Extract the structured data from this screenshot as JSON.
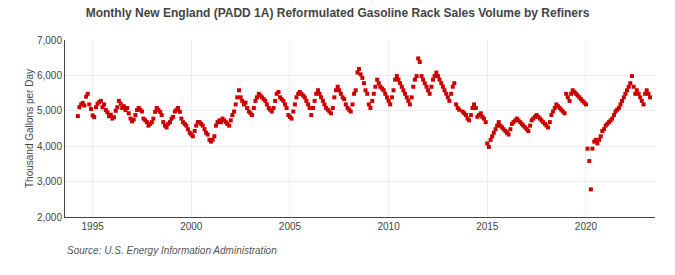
{
  "chart_data": {
    "type": "scatter",
    "title": "Monthly New England (PADD 1A) Reformulated Gasoline Rack Sales Volume by Refiners",
    "y_label": "Thousand Gallons per Day",
    "annotations": [
      "Source: U.S. Energy Information Administration"
    ],
    "color": "#cc0000",
    "marker": "square",
    "grid": true,
    "xlim": [
      1993.6,
      2023.5
    ],
    "xticks": [
      1995,
      2000,
      2005,
      2010,
      2015,
      2020
    ],
    "ylim": [
      2000,
      7000
    ],
    "yticks": [
      {
        "value": 2000,
        "label": "2,000"
      },
      {
        "value": 3000,
        "label": "3,000"
      },
      {
        "value": 4000,
        "label": "4,000"
      },
      {
        "value": 5000,
        "label": "5,000"
      },
      {
        "value": 6000,
        "label": "6,000"
      },
      {
        "value": 7000,
        "label": "7,000"
      }
    ],
    "x": [
      1994.25,
      1994.33,
      1994.42,
      1994.5,
      1994.58,
      1994.67,
      1994.75,
      1994.83,
      1994.92,
      1995.0,
      1995.08,
      1995.17,
      1995.25,
      1995.33,
      1995.42,
      1995.5,
      1995.58,
      1995.67,
      1995.75,
      1995.83,
      1995.92,
      1996.0,
      1996.08,
      1996.17,
      1996.25,
      1996.33,
      1996.42,
      1996.5,
      1996.58,
      1996.67,
      1996.75,
      1996.83,
      1996.92,
      1997.0,
      1997.08,
      1997.17,
      1997.25,
      1997.33,
      1997.42,
      1997.5,
      1997.58,
      1997.67,
      1997.75,
      1997.83,
      1997.92,
      1998.0,
      1998.08,
      1998.17,
      1998.25,
      1998.33,
      1998.42,
      1998.5,
      1998.58,
      1998.67,
      1998.75,
      1998.83,
      1998.92,
      1999.0,
      1999.08,
      1999.17,
      1999.25,
      1999.33,
      1999.42,
      1999.5,
      1999.58,
      1999.67,
      1999.75,
      1999.83,
      1999.92,
      2000.0,
      2000.08,
      2000.17,
      2000.25,
      2000.33,
      2000.42,
      2000.5,
      2000.58,
      2000.67,
      2000.75,
      2000.83,
      2000.92,
      2001.0,
      2001.08,
      2001.17,
      2001.25,
      2001.33,
      2001.42,
      2001.5,
      2001.58,
      2001.67,
      2001.75,
      2001.83,
      2001.92,
      2002.0,
      2002.08,
      2002.17,
      2002.25,
      2002.33,
      2002.42,
      2002.5,
      2002.58,
      2002.67,
      2002.75,
      2002.83,
      2002.92,
      2003.0,
      2003.08,
      2003.17,
      2003.25,
      2003.33,
      2003.42,
      2003.5,
      2003.58,
      2003.67,
      2003.75,
      2003.83,
      2003.92,
      2004.0,
      2004.08,
      2004.17,
      2004.25,
      2004.33,
      2004.42,
      2004.5,
      2004.58,
      2004.67,
      2004.75,
      2004.83,
      2004.92,
      2005.0,
      2005.08,
      2005.17,
      2005.25,
      2005.33,
      2005.42,
      2005.5,
      2005.58,
      2005.67,
      2005.75,
      2005.83,
      2005.92,
      2006.0,
      2006.08,
      2006.17,
      2006.25,
      2006.33,
      2006.42,
      2006.5,
      2006.58,
      2006.67,
      2006.75,
      2006.83,
      2006.92,
      2007.0,
      2007.08,
      2007.17,
      2007.25,
      2007.33,
      2007.42,
      2007.5,
      2007.58,
      2007.67,
      2007.75,
      2007.83,
      2007.92,
      2008.0,
      2008.08,
      2008.17,
      2008.25,
      2008.33,
      2008.42,
      2008.5,
      2008.58,
      2008.67,
      2008.75,
      2008.83,
      2008.92,
      2009.0,
      2009.08,
      2009.17,
      2009.25,
      2009.33,
      2009.42,
      2009.5,
      2009.58,
      2009.67,
      2009.75,
      2009.83,
      2009.92,
      2010.0,
      2010.08,
      2010.17,
      2010.25,
      2010.33,
      2010.42,
      2010.5,
      2010.58,
      2010.67,
      2010.75,
      2010.83,
      2010.92,
      2011.0,
      2011.08,
      2011.17,
      2011.25,
      2011.33,
      2011.42,
      2011.5,
      2011.58,
      2011.67,
      2011.75,
      2011.83,
      2011.92,
      2012.0,
      2012.08,
      2012.17,
      2012.25,
      2012.33,
      2012.42,
      2012.5,
      2012.58,
      2012.67,
      2012.75,
      2012.83,
      2012.92,
      2013.0,
      2013.08,
      2013.17,
      2013.25,
      2013.33,
      2013.42,
      2013.5,
      2013.58,
      2013.75,
      2013.83,
      2013.92,
      2014.0,
      2014.08,
      2014.17,
      2014.25,
      2014.33,
      2014.42,
      2014.5,
      2014.58,
      2014.67,
      2014.75,
      2014.83,
      2014.92,
      2015.0,
      2015.08,
      2015.17,
      2015.25,
      2015.33,
      2015.42,
      2015.5,
      2015.58,
      2015.67,
      2015.75,
      2015.83,
      2015.92,
      2016.0,
      2016.08,
      2016.17,
      2016.25,
      2016.33,
      2016.42,
      2016.5,
      2016.58,
      2016.67,
      2016.75,
      2016.83,
      2016.92,
      2017.0,
      2017.08,
      2017.17,
      2017.25,
      2017.33,
      2017.42,
      2017.5,
      2017.58,
      2017.67,
      2017.75,
      2017.83,
      2017.92,
      2018.0,
      2018.08,
      2018.17,
      2018.25,
      2018.33,
      2018.42,
      2018.5,
      2018.58,
      2018.67,
      2018.75,
      2018.83,
      2018.92,
      2019.0,
      2019.08,
      2019.17,
      2019.25,
      2019.33,
      2019.42,
      2019.5,
      2019.58,
      2019.67,
      2019.75,
      2019.83,
      2019.92,
      2020.0,
      2020.08,
      2020.17,
      2020.25,
      2020.33,
      2020.42,
      2020.5,
      2020.58,
      2020.67,
      2020.75,
      2020.83,
      2020.92,
      2021.0,
      2021.08,
      2021.17,
      2021.25,
      2021.33,
      2021.42,
      2021.5,
      2021.58,
      2021.67,
      2021.75,
      2021.83,
      2021.92,
      2022.0,
      2022.08,
      2022.17,
      2022.25,
      2022.33,
      2022.42,
      2022.5,
      2022.58,
      2022.67,
      2022.75,
      2022.83,
      2022.92,
      2023.0,
      2023.08,
      2023.17,
      2023.25
    ],
    "values": [
      4850,
      5100,
      5180,
      5220,
      5150,
      5400,
      5480,
      5180,
      5050,
      4870,
      4820,
      5100,
      5200,
      5240,
      5280,
      5100,
      5180,
      5020,
      4960,
      4850,
      4890,
      4780,
      4820,
      5000,
      5100,
      5280,
      5200,
      5080,
      5130,
      5020,
      5080,
      4930,
      4780,
      4700,
      4750,
      4880,
      5020,
      5080,
      5030,
      4980,
      4780,
      4730,
      4680,
      4580,
      4630,
      4680,
      4780,
      4970,
      5080,
      5030,
      4970,
      4880,
      4680,
      4580,
      4530,
      4630,
      4680,
      4780,
      4830,
      4980,
      5030,
      5080,
      4970,
      4780,
      4680,
      4630,
      4580,
      4480,
      4380,
      4330,
      4280,
      4430,
      4580,
      4680,
      4680,
      4630,
      4580,
      4480,
      4380,
      4330,
      4180,
      4130,
      4180,
      4280,
      4580,
      4680,
      4730,
      4680,
      4780,
      4730,
      4680,
      4630,
      4580,
      4730,
      4880,
      4980,
      5180,
      5380,
      5580,
      5380,
      5280,
      5180,
      5230,
      5080,
      4980,
      4930,
      4880,
      5080,
      5280,
      5380,
      5480,
      5430,
      5380,
      5330,
      5280,
      5180,
      5080,
      5030,
      4980,
      5080,
      5280,
      5480,
      5530,
      5380,
      5330,
      5280,
      5180,
      5080,
      4880,
      4830,
      4780,
      4980,
      5180,
      5380,
      5480,
      5530,
      5480,
      5430,
      5380,
      5280,
      5180,
      5080,
      4880,
      5080,
      5280,
      5480,
      5580,
      5480,
      5380,
      5280,
      5180,
      5080,
      5030,
      4980,
      4930,
      5080,
      5380,
      5580,
      5680,
      5580,
      5480,
      5380,
      5330,
      5180,
      5080,
      5030,
      4980,
      5180,
      5480,
      5580,
      6080,
      6180,
      6030,
      5930,
      5780,
      5580,
      5480,
      5180,
      5080,
      5280,
      5480,
      5680,
      5880,
      5780,
      5680,
      5630,
      5580,
      5480,
      5380,
      5280,
      5180,
      5380,
      5580,
      5880,
      5980,
      5880,
      5780,
      5680,
      5580,
      5480,
      5380,
      5280,
      5180,
      5380,
      5680,
      5880,
      5980,
      6480,
      6380,
      5980,
      5880,
      5780,
      5680,
      5580,
      5480,
      5680,
      5880,
      5980,
      6080,
      5980,
      5880,
      5780,
      5680,
      5580,
      5480,
      5380,
      5280,
      5480,
      5680,
      5780,
      5180,
      5080,
      5030,
      4980,
      4930,
      4880,
      4780,
      4730,
      4880,
      5080,
      5180,
      5080,
      4830,
      4880,
      4930,
      4830,
      4780,
      4680,
      4080,
      3980,
      4180,
      4280,
      4380,
      4480,
      4580,
      4680,
      4580,
      4530,
      4480,
      4430,
      4380,
      4330,
      4480,
      4630,
      4680,
      4730,
      4780,
      4730,
      4680,
      4630,
      4580,
      4530,
      4480,
      4430,
      4580,
      4730,
      4780,
      4830,
      4880,
      4830,
      4780,
      4730,
      4680,
      4630,
      4580,
      4530,
      4680,
      4880,
      4980,
      5080,
      5180,
      5130,
      5080,
      5030,
      4980,
      4930,
      5480,
      5380,
      5280,
      5480,
      5580,
      5530,
      5480,
      5430,
      5380,
      5330,
      5280,
      5230,
      5180,
      3930,
      3580,
      2780,
      3930,
      4130,
      4180,
      4080,
      4180,
      4280,
      4430,
      4480,
      4580,
      4630,
      4680,
      4730,
      4780,
      4880,
      4980,
      5030,
      5080,
      5180,
      5280,
      5380,
      5480,
      5580,
      5680,
      5780,
      5980,
      5680,
      5480,
      5580,
      5480,
      5380,
      5280,
      5180,
      5480,
      5580,
      5480,
      5380
    ]
  }
}
